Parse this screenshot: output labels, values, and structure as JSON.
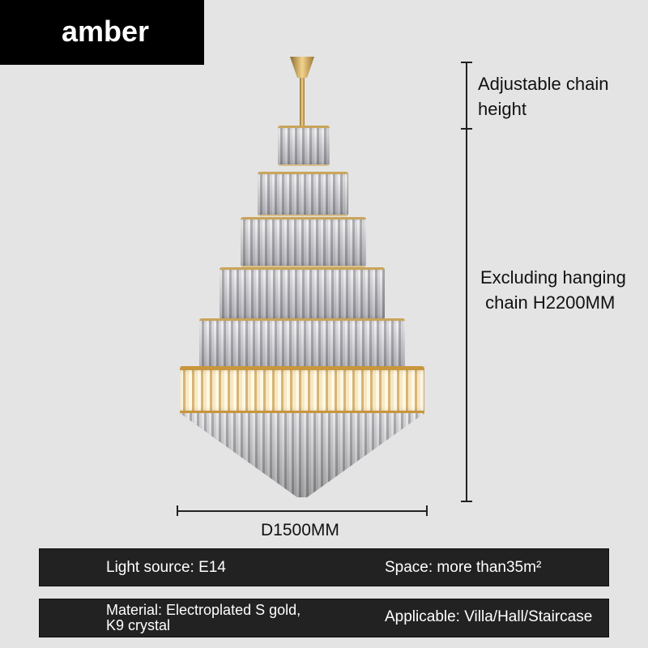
{
  "color_tag": "amber",
  "dimensions": {
    "chain_label": "Adjustable chain\nheight",
    "height_label": "Excluding hanging\n chain H2200MM",
    "diameter_label": "D1500MM"
  },
  "specs": [
    {
      "left": "Light source: E14",
      "right": "Space: more than35m²"
    },
    {
      "left": "Material: Electroplated S gold,\nK9 crystal",
      "right": "Applicable: Villa/Hall/Staircase"
    }
  ]
}
